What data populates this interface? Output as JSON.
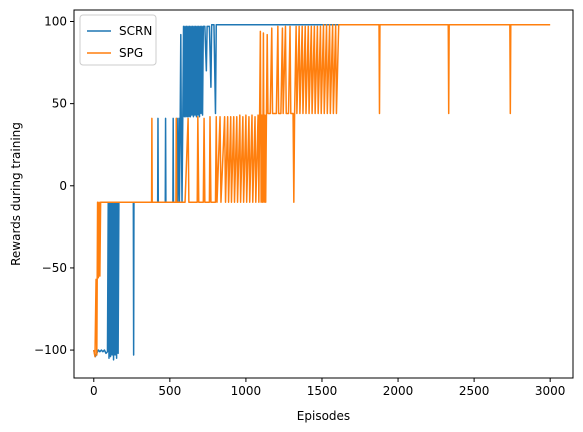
{
  "chart_data": {
    "type": "line",
    "title": "",
    "xlabel": "Episodes",
    "ylabel": "Rewards during training",
    "xlim": [
      -130,
      3150
    ],
    "ylim": [
      -117,
      107
    ],
    "xticks": [
      0,
      500,
      1000,
      1500,
      2000,
      2500,
      3000
    ],
    "yticks": [
      -100,
      -50,
      0,
      50,
      100
    ],
    "xtick_labels": [
      "0",
      "500",
      "1000",
      "1500",
      "2000",
      "2500",
      "3000"
    ],
    "ytick_labels": [
      "−100",
      "−50",
      "0",
      "50",
      "100"
    ],
    "grid": false,
    "legend_position": "top-left",
    "series": [
      {
        "name": "SCRN",
        "color": "#1f77b4",
        "trace": [
          [
            0,
            -100
          ],
          [
            10,
            -104
          ],
          [
            20,
            -102
          ],
          [
            30,
            -100
          ],
          [
            40,
            -101
          ],
          [
            50,
            -100
          ],
          [
            60,
            -101
          ],
          [
            70,
            -100
          ],
          [
            80,
            -102
          ],
          [
            90,
            -101
          ],
          [
            95,
            -10
          ],
          [
            100,
            -105
          ],
          [
            105,
            -10
          ],
          [
            110,
            -104
          ],
          [
            115,
            -10
          ],
          [
            120,
            -103
          ],
          [
            125,
            -10
          ],
          [
            130,
            -106
          ],
          [
            135,
            -10
          ],
          [
            140,
            -103
          ],
          [
            145,
            -10
          ],
          [
            150,
            -105
          ],
          [
            155,
            -10
          ],
          [
            160,
            -102
          ],
          [
            165,
            -10
          ],
          [
            170,
            -10
          ],
          [
            260,
            -10
          ],
          [
            262,
            -103
          ],
          [
            264,
            -10
          ],
          [
            420,
            -10
          ],
          [
            422,
            41
          ],
          [
            424,
            -10
          ],
          [
            470,
            -10
          ],
          [
            472,
            41
          ],
          [
            474,
            -10
          ],
          [
            520,
            -10
          ],
          [
            522,
            41
          ],
          [
            524,
            -10
          ],
          [
            545,
            -10
          ],
          [
            548,
            41
          ],
          [
            552,
            -10
          ],
          [
            560,
            41
          ],
          [
            563,
            -10
          ],
          [
            568,
            41
          ],
          [
            572,
            92
          ],
          [
            575,
            41
          ],
          [
            580,
            -10
          ],
          [
            585,
            42
          ],
          [
            590,
            97
          ],
          [
            595,
            42
          ],
          [
            600,
            97
          ],
          [
            605,
            42
          ],
          [
            610,
            97
          ],
          [
            615,
            42
          ],
          [
            620,
            97
          ],
          [
            625,
            42
          ],
          [
            630,
            97
          ],
          [
            635,
            42
          ],
          [
            640,
            97
          ],
          [
            645,
            43
          ],
          [
            650,
            97
          ],
          [
            655,
            42
          ],
          [
            660,
            97
          ],
          [
            665,
            43
          ],
          [
            670,
            97
          ],
          [
            675,
            42
          ],
          [
            680,
            97
          ],
          [
            685,
            43
          ],
          [
            690,
            97
          ],
          [
            695,
            42
          ],
          [
            700,
            97
          ],
          [
            705,
            44
          ],
          [
            710,
            97
          ],
          [
            715,
            43
          ],
          [
            720,
            97
          ],
          [
            730,
            97
          ],
          [
            740,
            70
          ],
          [
            745,
            97
          ],
          [
            760,
            97
          ],
          [
            770,
            60
          ],
          [
            775,
            98
          ],
          [
            790,
            98
          ],
          [
            800,
            44
          ],
          [
            805,
            98
          ],
          [
            850,
            98
          ],
          [
            1000,
            98
          ],
          [
            1200,
            98
          ],
          [
            1400,
            98
          ],
          [
            1500,
            98
          ],
          [
            1650,
            98
          ]
        ]
      },
      {
        "name": "SPG",
        "color": "#ff7f0e",
        "trace": [
          [
            0,
            -100
          ],
          [
            8,
            -104
          ],
          [
            15,
            -57
          ],
          [
            20,
            -103
          ],
          [
            25,
            -10
          ],
          [
            30,
            -56
          ],
          [
            35,
            -10
          ],
          [
            40,
            -55
          ],
          [
            45,
            -10
          ],
          [
            100,
            -10
          ],
          [
            200,
            -10
          ],
          [
            300,
            -10
          ],
          [
            380,
            -10
          ],
          [
            382,
            41
          ],
          [
            384,
            -10
          ],
          [
            500,
            -10
          ],
          [
            540,
            -10
          ],
          [
            542,
            41
          ],
          [
            545,
            -10
          ],
          [
            600,
            -10
          ],
          [
            620,
            41
          ],
          [
            625,
            -10
          ],
          [
            680,
            -10
          ],
          [
            684,
            42
          ],
          [
            690,
            -10
          ],
          [
            720,
            -10
          ],
          [
            725,
            41
          ],
          [
            730,
            -10
          ],
          [
            760,
            -10
          ],
          [
            764,
            42
          ],
          [
            770,
            -10
          ],
          [
            800,
            -10
          ],
          [
            805,
            42
          ],
          [
            810,
            -10
          ],
          [
            830,
            42
          ],
          [
            836,
            -10
          ],
          [
            860,
            42
          ],
          [
            866,
            -10
          ],
          [
            880,
            42
          ],
          [
            886,
            -10
          ],
          [
            900,
            42
          ],
          [
            905,
            -10
          ],
          [
            920,
            42
          ],
          [
            925,
            -10
          ],
          [
            940,
            42
          ],
          [
            945,
            -10
          ],
          [
            960,
            43
          ],
          [
            965,
            -10
          ],
          [
            980,
            42
          ],
          [
            985,
            -10
          ],
          [
            1000,
            43
          ],
          [
            1005,
            -10
          ],
          [
            1020,
            42
          ],
          [
            1025,
            -10
          ],
          [
            1040,
            43
          ],
          [
            1045,
            -10
          ],
          [
            1060,
            42
          ],
          [
            1065,
            -10
          ],
          [
            1080,
            43
          ],
          [
            1085,
            -10
          ],
          [
            1095,
            94
          ],
          [
            1100,
            -10
          ],
          [
            1105,
            43
          ],
          [
            1110,
            -10
          ],
          [
            1115,
            93
          ],
          [
            1120,
            -10
          ],
          [
            1125,
            43
          ],
          [
            1130,
            -10
          ],
          [
            1135,
            44
          ],
          [
            1140,
            92
          ],
          [
            1145,
            44
          ],
          [
            1160,
            44
          ],
          [
            1170,
            96
          ],
          [
            1175,
            44
          ],
          [
            1200,
            44
          ],
          [
            1210,
            97
          ],
          [
            1215,
            44
          ],
          [
            1230,
            44
          ],
          [
            1240,
            96
          ],
          [
            1245,
            44
          ],
          [
            1260,
            97
          ],
          [
            1265,
            44
          ],
          [
            1280,
            44
          ],
          [
            1290,
            97
          ],
          [
            1295,
            44
          ],
          [
            1310,
            44
          ],
          [
            1315,
            -10
          ],
          [
            1320,
            44
          ],
          [
            1330,
            97
          ],
          [
            1335,
            44
          ],
          [
            1350,
            97
          ],
          [
            1355,
            44
          ],
          [
            1370,
            97
          ],
          [
            1375,
            44
          ],
          [
            1390,
            97
          ],
          [
            1395,
            44
          ],
          [
            1410,
            97
          ],
          [
            1415,
            44
          ],
          [
            1430,
            97
          ],
          [
            1435,
            44
          ],
          [
            1450,
            97
          ],
          [
            1455,
            44
          ],
          [
            1470,
            97
          ],
          [
            1475,
            44
          ],
          [
            1490,
            97
          ],
          [
            1495,
            44
          ],
          [
            1510,
            98
          ],
          [
            1515,
            44
          ],
          [
            1530,
            98
          ],
          [
            1535,
            44
          ],
          [
            1550,
            98
          ],
          [
            1555,
            44
          ],
          [
            1570,
            98
          ],
          [
            1575,
            44
          ],
          [
            1590,
            98
          ],
          [
            1595,
            44
          ],
          [
            1610,
            98
          ],
          [
            1650,
            98
          ],
          [
            1700,
            98
          ],
          [
            1800,
            98
          ],
          [
            1875,
            98
          ],
          [
            1878,
            44
          ],
          [
            1881,
            98
          ],
          [
            2000,
            98
          ],
          [
            2200,
            98
          ],
          [
            2330,
            98
          ],
          [
            2333,
            44
          ],
          [
            2336,
            98
          ],
          [
            2500,
            98
          ],
          [
            2700,
            98
          ],
          [
            2735,
            98
          ],
          [
            2738,
            44
          ],
          [
            2741,
            98
          ],
          [
            2800,
            98
          ],
          [
            2900,
            98
          ],
          [
            3000,
            98
          ]
        ]
      }
    ]
  }
}
